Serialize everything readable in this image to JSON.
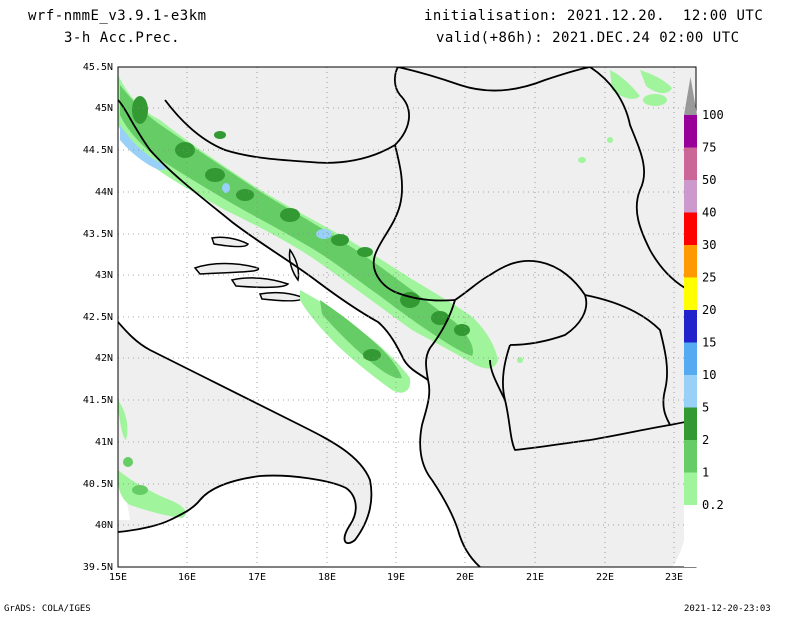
{
  "header": {
    "model": "wrf-nmmE_v3.9.1-e3km",
    "field": "3-h Acc.Prec.",
    "init": "initialisation: 2021.12.20.  12:00 UTC",
    "valid": "valid(+86h): 2021.DEC.24 02:00 UTC"
  },
  "map": {
    "lat_labels": [
      "45.5N",
      "45N",
      "44.5N",
      "44N",
      "43.5N",
      "43N",
      "42.5N",
      "42N",
      "41.5N",
      "41N",
      "40.5N",
      "40N",
      "39.5N"
    ],
    "lon_labels": [
      "15E",
      "16E",
      "17E",
      "18E",
      "19E",
      "20E",
      "21E",
      "22E",
      "23E"
    ],
    "colors": {
      "land": "#efefef",
      "sea": "#ffffff",
      "border": "#000000",
      "grid": "#8a8a8a"
    }
  },
  "legend": {
    "entries": [
      {
        "label": "0.2",
        "color": "#a0f49c"
      },
      {
        "label": "1",
        "color": "#66cc66"
      },
      {
        "label": "2",
        "color": "#339933"
      },
      {
        "label": "5",
        "color": "#99d0f8"
      },
      {
        "label": "10",
        "color": "#55aaf2"
      },
      {
        "label": "15",
        "color": "#2222cc"
      },
      {
        "label": "20",
        "color": "#ffff00"
      },
      {
        "label": "25",
        "color": "#ff9900"
      },
      {
        "label": "30",
        "color": "#ff0000"
      },
      {
        "label": "40",
        "color": "#cc99cc"
      },
      {
        "label": "50",
        "color": "#cc6699"
      },
      {
        "label": "75",
        "color": "#990099"
      },
      {
        "label": "100",
        "color": "#999999"
      }
    ]
  },
  "footer": {
    "left": "GrADS: COLA/IGES",
    "right": "2021-12-20-23:03"
  }
}
